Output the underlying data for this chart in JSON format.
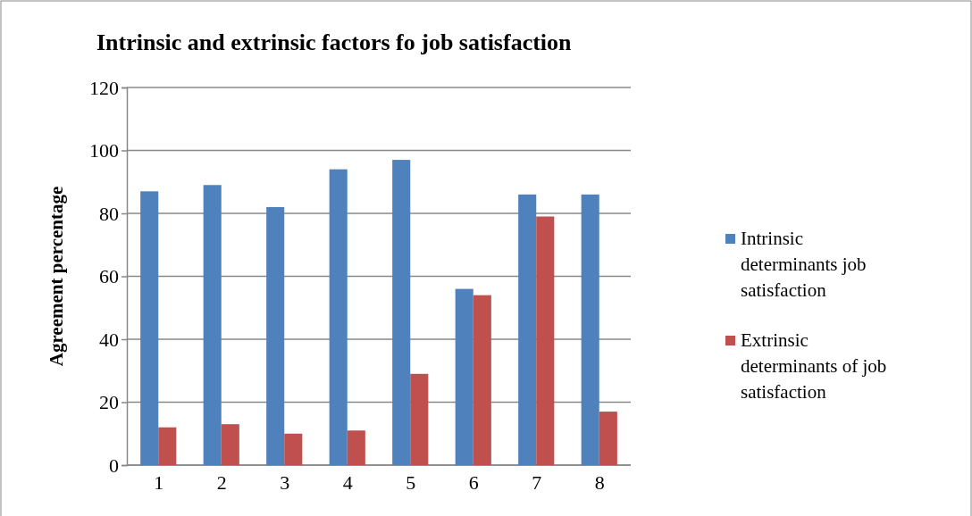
{
  "chart_data": {
    "type": "bar",
    "title": "Intrinsic and extrinsic factors fo job satisfaction",
    "ylabel": "Agreement percentage",
    "categories": [
      "1",
      "2",
      "3",
      "4",
      "5",
      "6",
      "7",
      "8"
    ],
    "series": [
      {
        "name": "Intrinsic determinants job satisfaction",
        "color": "#4f81bd",
        "values": [
          87,
          89,
          82,
          94,
          97,
          56,
          86,
          86
        ]
      },
      {
        "name": "Extrinsic determinants of job satisfaction",
        "color": "#c0504d",
        "values": [
          12,
          13,
          10,
          11,
          29,
          54,
          79,
          17
        ]
      }
    ],
    "ylim": [
      0,
      120
    ],
    "yticks": [
      0,
      20,
      40,
      60,
      80,
      100,
      120
    ],
    "grid": "y",
    "legend": "right"
  }
}
